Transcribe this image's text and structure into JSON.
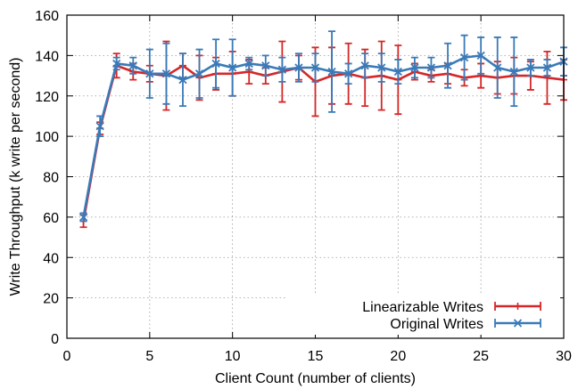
{
  "chart_data": {
    "type": "line",
    "title": "",
    "xlabel": "Client Count (number of clients)",
    "ylabel": "Write Throughput (k write per second)",
    "xlim": [
      0,
      30
    ],
    "ylim": [
      0,
      160
    ],
    "xticks": [
      0,
      5,
      10,
      15,
      20,
      25,
      30
    ],
    "yticks": [
      0,
      20,
      40,
      60,
      80,
      100,
      120,
      140,
      160
    ],
    "grid": true,
    "legend_position": "bottom-right",
    "series": [
      {
        "name": "Linearizable Writes",
        "color": "#d62728",
        "marker": "plus",
        "x": [
          1,
          2,
          3,
          4,
          5,
          6,
          7,
          8,
          9,
          10,
          11,
          12,
          13,
          14,
          15,
          16,
          17,
          18,
          19,
          20,
          21,
          22,
          23,
          24,
          25,
          26,
          27,
          28,
          29,
          30
        ],
        "y": [
          58,
          104,
          135,
          132,
          131,
          130,
          135,
          129,
          131,
          131,
          132,
          130,
          132,
          134,
          127,
          130,
          131,
          129,
          130,
          128,
          132,
          130,
          131,
          129,
          130,
          129,
          130,
          130,
          129,
          128
        ],
        "err": [
          3,
          3,
          6,
          4,
          4,
          17,
          6,
          11,
          8,
          11,
          6,
          4,
          15,
          6,
          17,
          14,
          15,
          14,
          17,
          17,
          4,
          3,
          5,
          4,
          6,
          8,
          9,
          7,
          13,
          10
        ]
      },
      {
        "name": "Original Writes",
        "color": "#3a7ab8",
        "marker": "x",
        "x": [
          1,
          2,
          3,
          4,
          5,
          6,
          7,
          8,
          9,
          10,
          11,
          12,
          13,
          14,
          15,
          16,
          17,
          18,
          19,
          20,
          21,
          22,
          23,
          24,
          25,
          26,
          27,
          28,
          29,
          30
        ],
        "y": [
          60,
          105,
          136,
          135,
          131,
          131,
          128,
          131,
          136,
          134,
          136,
          135,
          133,
          134,
          134,
          132,
          131,
          135,
          134,
          132,
          134,
          134,
          135,
          139,
          140,
          134,
          132,
          134,
          134,
          137
        ],
        "err": [
          2,
          5,
          3,
          4,
          12,
          15,
          13,
          12,
          12,
          14,
          3,
          5,
          6,
          7,
          7,
          20,
          5,
          6,
          7,
          6,
          5,
          5,
          11,
          11,
          9,
          15,
          17,
          4,
          4,
          7
        ]
      }
    ]
  }
}
